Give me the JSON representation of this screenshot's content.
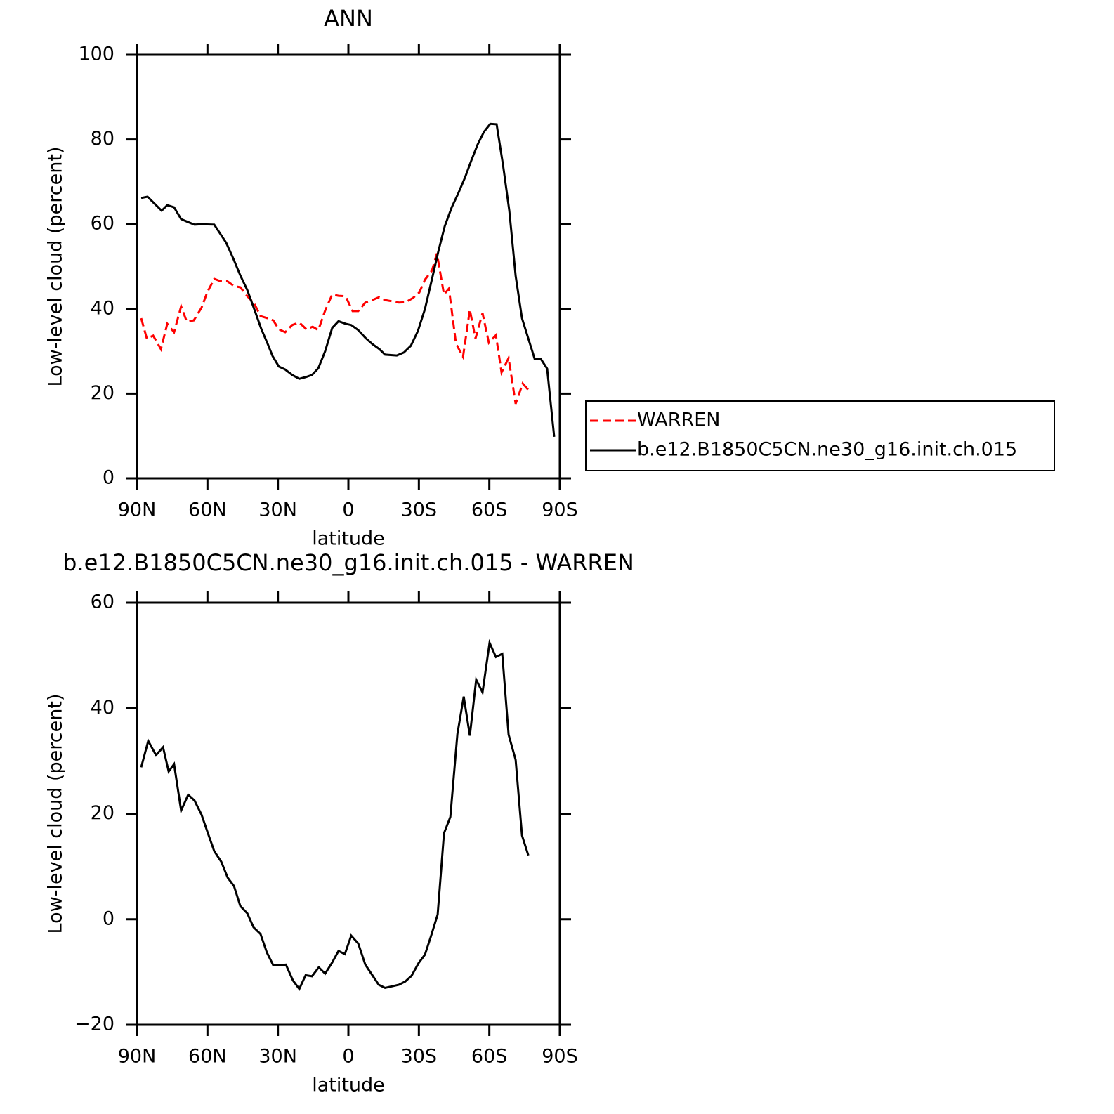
{
  "chart_data": [
    {
      "type": "line",
      "title": "ANN",
      "xlabel": "latitude",
      "ylabel": "Low-level cloud (percent)",
      "xlim": [
        90,
        -90
      ],
      "xticks": [
        {
          "value": 90,
          "label": "90N"
        },
        {
          "value": 60,
          "label": "60N"
        },
        {
          "value": 30,
          "label": "30N"
        },
        0,
        {
          "value": -30,
          "label": "30S"
        },
        {
          "value": -60,
          "label": "60S"
        },
        {
          "value": -90,
          "label": "90S"
        }
      ],
      "ylim": [
        0,
        100
      ],
      "yticks": [
        0,
        20,
        40,
        60,
        80,
        100
      ],
      "legend": "right",
      "series": [
        {
          "name": "WARREN",
          "color": "#ff0000",
          "style": "dashed",
          "x": [
            88.2,
            85.8,
            83.1,
            79.8,
            77.1,
            74.2,
            71.2,
            68.8,
            65.8,
            62.5,
            60.1,
            57.1,
            54.7,
            51.7,
            48.7,
            46.0,
            43.0,
            40.1,
            37.4,
            34.4,
            32.0,
            29.6,
            26.9,
            23.9,
            20.9,
            17.9,
            15.2,
            12.8,
            9.9,
            6.9,
            4.2,
            1.2,
            -1.8,
            -4.2,
            -7.2,
            -10.2,
            -13.2,
            -15.6,
            -18.6,
            -21.5,
            -24.5,
            -27.5,
            -30.2,
            -32.6,
            -35.6,
            -37.7,
            -40.7,
            -42.8,
            -45.8,
            -48.8,
            -51.7,
            -54.1,
            -57.1,
            -59.8,
            -62.8,
            -65.2,
            -68.2,
            -71.2,
            -74.2,
            -76.9
          ],
          "values": [
            37.8,
            33.0,
            33.7,
            30.5,
            36.5,
            34.5,
            40.6,
            37.0,
            37.3,
            40.3,
            43.9,
            47.1,
            46.6,
            46.6,
            45.4,
            45.1,
            43.0,
            41.3,
            38.3,
            37.8,
            37.3,
            35.2,
            34.5,
            36.2,
            36.8,
            35.2,
            35.8,
            35.0,
            39.6,
            43.4,
            43.1,
            43.0,
            39.5,
            39.5,
            41.5,
            42.1,
            42.8,
            42.1,
            41.8,
            41.5,
            41.6,
            42.6,
            43.9,
            46.9,
            49.1,
            53.1,
            43.4,
            44.8,
            31.8,
            28.7,
            39.8,
            33.0,
            39.0,
            32.0,
            33.8,
            25.0,
            28.4,
            17.6,
            22.4,
            20.7
          ]
        },
        {
          "name": "b.e12.B1850C5CN.ne30_g16.init.ch.015",
          "color": "#000000",
          "style": "solid",
          "x": [
            88.2,
            85.5,
            79.5,
            77.1,
            74.2,
            71.2,
            68.2,
            65.5,
            62.5,
            57.1,
            52.0,
            49.0,
            46.0,
            43.0,
            40.1,
            37.1,
            34.4,
            32.3,
            29.6,
            26.9,
            23.9,
            20.9,
            18.2,
            15.5,
            12.8,
            9.9,
            6.9,
            4.2,
            1.2,
            -1.2,
            -4.2,
            -7.2,
            -10.2,
            -13.2,
            -15.6,
            -20.6,
            -23.6,
            -26.6,
            -29.6,
            -32.6,
            -35.6,
            -38.3,
            -41.0,
            -44.0,
            -46.7,
            -49.7,
            -52.3,
            -55.0,
            -57.7,
            -60.4,
            -63.1,
            -65.8,
            -68.5,
            -71.2,
            -73.9,
            -76.6,
            -79.3,
            -81.9,
            -84.6,
            -87.6
          ],
          "values": [
            66.2,
            66.5,
            63.2,
            64.5,
            64.0,
            61.2,
            60.5,
            59.9,
            60.0,
            59.9,
            55.6,
            51.9,
            47.9,
            44.4,
            40.0,
            35.3,
            31.8,
            28.9,
            26.4,
            25.7,
            24.4,
            23.5,
            23.9,
            24.4,
            26.0,
            30.0,
            35.5,
            37.1,
            36.5,
            36.2,
            35.0,
            33.2,
            31.7,
            30.5,
            29.2,
            29.0,
            29.7,
            31.3,
            34.8,
            40.0,
            47.1,
            53.6,
            59.5,
            64.0,
            67.2,
            71.1,
            75.0,
            78.8,
            81.8,
            83.7,
            83.6,
            74.1,
            63.2,
            47.8,
            37.8,
            33.0,
            28.2,
            28.2,
            25.9,
            9.8
          ]
        }
      ]
    },
    {
      "type": "line",
      "title": "b.e12.B1850C5CN.ne30_g16.init.ch.015 - WARREN",
      "xlabel": "latitude",
      "ylabel": "Low-level cloud (percent)",
      "xlim": [
        90,
        -90
      ],
      "xticks": [
        {
          "value": 90,
          "label": "90N"
        },
        {
          "value": 60,
          "label": "60N"
        },
        {
          "value": 30,
          "label": "30N"
        },
        0,
        {
          "value": -30,
          "label": "30S"
        },
        {
          "value": -60,
          "label": "60S"
        },
        {
          "value": -90,
          "label": "90S"
        }
      ],
      "ylim": [
        -20,
        60
      ],
      "yticks": [
        {
          "value": -20,
          "label": "−20"
        },
        0,
        20,
        40,
        60
      ],
      "series": [
        {
          "color": "#000000",
          "style": "solid",
          "x": [
            88.2,
            85.2,
            81.9,
            78.9,
            76.5,
            74.2,
            71.2,
            68.2,
            65.5,
            62.5,
            59.8,
            57.1,
            54.1,
            51.4,
            48.7,
            46.0,
            43.0,
            40.4,
            37.4,
            34.7,
            32.0,
            29.3,
            26.6,
            23.6,
            20.9,
            18.2,
            15.5,
            12.6,
            9.9,
            6.9,
            4.2,
            1.5,
            -1.2,
            -4.2,
            -7.2,
            -10.2,
            -12.9,
            -15.6,
            -18.6,
            -21.5,
            -24.2,
            -26.9,
            -29.9,
            -32.6,
            -35.3,
            -38.0,
            -40.7,
            -43.4,
            -46.4,
            -49.1,
            -51.7,
            -54.4,
            -57.1,
            -60.1,
            -62.8,
            -65.5,
            -68.2,
            -71.2,
            -73.9,
            -76.6
          ],
          "values": [
            28.8,
            33.8,
            31.1,
            32.6,
            28.0,
            29.4,
            20.6,
            23.6,
            22.5,
            19.8,
            16.3,
            12.9,
            10.9,
            7.9,
            6.3,
            2.5,
            1.1,
            -1.5,
            -2.8,
            -6.3,
            -8.7,
            -8.7,
            -8.6,
            -11.6,
            -13.2,
            -10.6,
            -10.8,
            -9.1,
            -10.3,
            -8.2,
            -6.0,
            -6.6,
            -3.1,
            -4.6,
            -8.6,
            -10.6,
            -12.4,
            -13.0,
            -12.7,
            -12.4,
            -11.8,
            -10.7,
            -8.3,
            -6.7,
            -3.0,
            0.9,
            16.3,
            19.4,
            35.1,
            42.2,
            34.8,
            45.4,
            43.0,
            52.4,
            49.7,
            50.3,
            35.0,
            30.2,
            15.9,
            12.1
          ]
        }
      ]
    }
  ]
}
